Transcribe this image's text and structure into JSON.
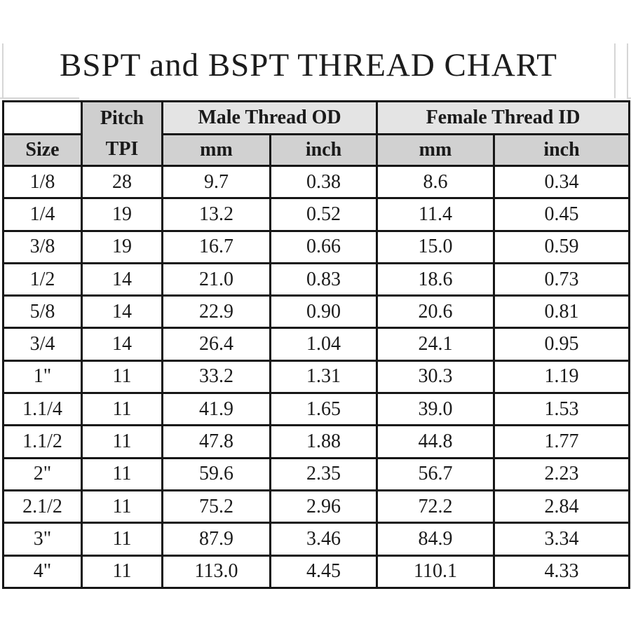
{
  "title": "BSPT and BSPT THREAD CHART",
  "table": {
    "header": {
      "size_label": "Size",
      "pitch_line1": "Pitch",
      "pitch_line2": "TPI",
      "male_group": "Male Thread OD",
      "female_group": "Female Thread ID",
      "units": [
        "mm",
        "inch",
        "mm",
        "inch"
      ]
    },
    "columns": [
      "Size",
      "Pitch TPI",
      "Male Thread OD mm",
      "Male Thread OD inch",
      "Female Thread ID mm",
      "Female Thread ID inch"
    ],
    "rows": [
      [
        "1/8",
        "28",
        "9.7",
        "0.38",
        "8.6",
        "0.34"
      ],
      [
        "1/4",
        "19",
        "13.2",
        "0.52",
        "11.4",
        "0.45"
      ],
      [
        "3/8",
        "19",
        "16.7",
        "0.66",
        "15.0",
        "0.59"
      ],
      [
        "1/2",
        "14",
        "21.0",
        "0.83",
        "18.6",
        "0.73"
      ],
      [
        "5/8",
        "14",
        "22.9",
        "0.90",
        "20.6",
        "0.81"
      ],
      [
        "3/4",
        "14",
        "26.4",
        "1.04",
        "24.1",
        "0.95"
      ],
      [
        "1\"",
        "11",
        "33.2",
        "1.31",
        "30.3",
        "1.19"
      ],
      [
        "1.1/4",
        "11",
        "41.9",
        "1.65",
        "39.0",
        "1.53"
      ],
      [
        "1.1/2",
        "11",
        "47.8",
        "1.88",
        "44.8",
        "1.77"
      ],
      [
        "2\"",
        "11",
        "59.6",
        "2.35",
        "56.7",
        "2.23"
      ],
      [
        "2.1/2",
        "11",
        "75.2",
        "2.96",
        "72.2",
        "2.84"
      ],
      [
        "3\"",
        "11",
        "87.9",
        "3.46",
        "84.9",
        "3.34"
      ],
      [
        "4\"",
        "11",
        "113.0",
        "4.45",
        "110.1",
        "4.33"
      ]
    ]
  },
  "colors": {
    "border": "#161616",
    "header_light_bg": "#e4e4e4",
    "header_gray_bg": "#d1d1d1",
    "text": "#1b1b1b",
    "artifact_line": "#d6d6d6"
  }
}
